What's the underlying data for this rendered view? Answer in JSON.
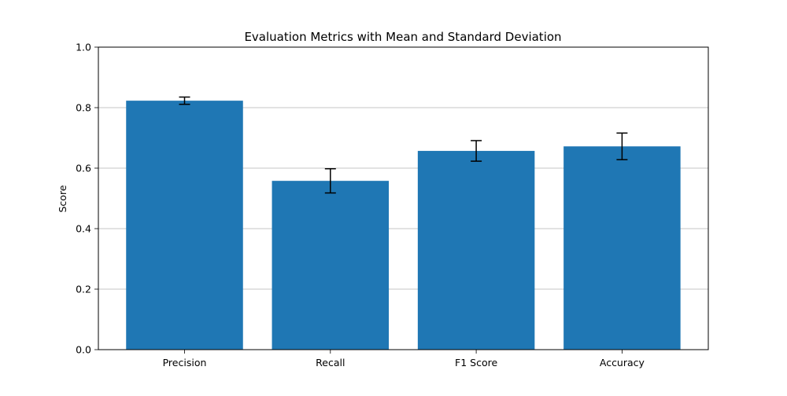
{
  "chart_data": {
    "type": "bar",
    "title": "Evaluation Metrics with Mean and Standard Deviation",
    "xlabel": "",
    "ylabel": "Score",
    "categories": [
      "Precision",
      "Recall",
      "F1 Score",
      "Accuracy"
    ],
    "values": [
      0.823,
      0.558,
      0.657,
      0.672
    ],
    "errors": [
      0.012,
      0.04,
      0.034,
      0.044
    ],
    "ylim": [
      0,
      1.0
    ],
    "yticks": [
      "0.0",
      "0.2",
      "0.4",
      "0.6",
      "0.8",
      "1.0"
    ],
    "grid": "y",
    "legend": "none",
    "bar_color": "#1f77b4",
    "error_color": "#000000",
    "grid_color": "#b0b0b0"
  }
}
